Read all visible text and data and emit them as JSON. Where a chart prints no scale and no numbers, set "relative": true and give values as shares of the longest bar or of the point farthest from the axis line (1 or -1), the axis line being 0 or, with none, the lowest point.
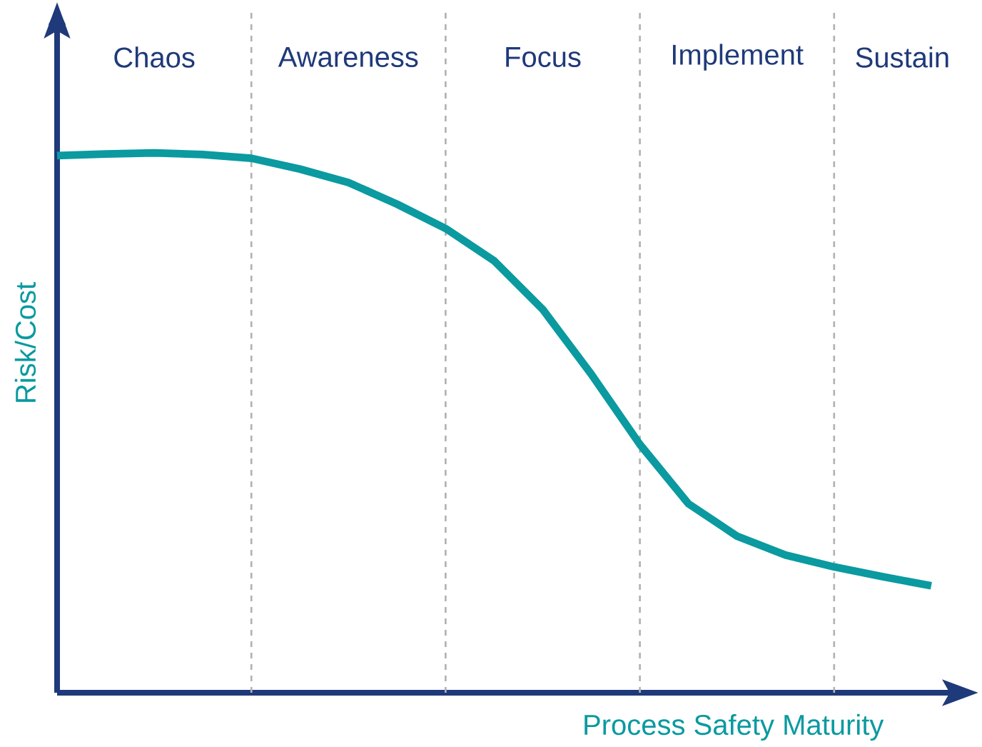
{
  "chart_data": {
    "type": "line",
    "relative": true,
    "xlabel": "Process Safety Maturity",
    "ylabel": "Risk/Cost",
    "marker": "none",
    "line_style": "solid",
    "categories": [
      null,
      null,
      null,
      null,
      null,
      null,
      null,
      null,
      null,
      null,
      null,
      null,
      null,
      null,
      null,
      null,
      null,
      null,
      null
    ],
    "annotations": [
      "Chaos",
      "Awareness",
      "Focus",
      "Implement",
      "Sustain"
    ],
    "grid": "x",
    "series": [
      {
        "color": "#0a9aa0",
        "values": [
          0.995,
          0.998,
          1.0,
          0.997,
          0.99,
          0.97,
          0.945,
          0.905,
          0.86,
          0.8,
          0.71,
          0.59,
          0.46,
          0.35,
          0.29,
          0.255,
          0.233,
          0.215,
          0.198
        ]
      }
    ]
  }
}
